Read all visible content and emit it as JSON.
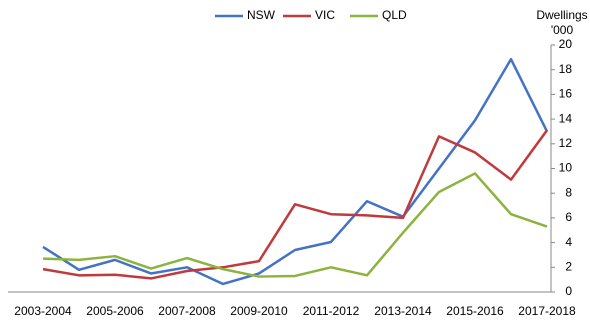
{
  "chart_data": {
    "type": "line",
    "y_label": [
      "Dwellings",
      "'000"
    ],
    "categories": [
      "2003-2004",
      null,
      "2005-2006",
      null,
      "2007-2008",
      null,
      "2009-2010",
      null,
      "2011-2012",
      null,
      "2013-2014",
      null,
      "2015-2016",
      null,
      "2017-2018"
    ],
    "series": [
      {
        "name": "NSW",
        "color": "#4472c4",
        "values": [
          3.65,
          1.8,
          2.6,
          1.5,
          2.0,
          0.65,
          1.5,
          3.4,
          4.05,
          7.35,
          6.1,
          10,
          13.9,
          18.85,
          13
        ]
      },
      {
        "name": "VIC",
        "color": "#c0393b",
        "values": [
          1.85,
          1.35,
          1.4,
          1.1,
          1.7,
          2.0,
          2.5,
          7.1,
          6.3,
          6.2,
          6.0,
          12.6,
          11.3,
          9.1,
          13.1
        ]
      },
      {
        "name": "QLD",
        "color": "#8db33f",
        "values": [
          2.7,
          2.6,
          2.9,
          1.9,
          2.75,
          1.85,
          1.25,
          1.3,
          2.0,
          1.35,
          4.8,
          8.1,
          9.6,
          6.3,
          5.3
        ]
      }
    ],
    "ylim": [
      0,
      20
    ],
    "yticks": [
      0,
      2,
      4,
      6,
      8,
      10,
      12,
      14,
      16,
      18,
      20
    ],
    "legend": "top"
  }
}
